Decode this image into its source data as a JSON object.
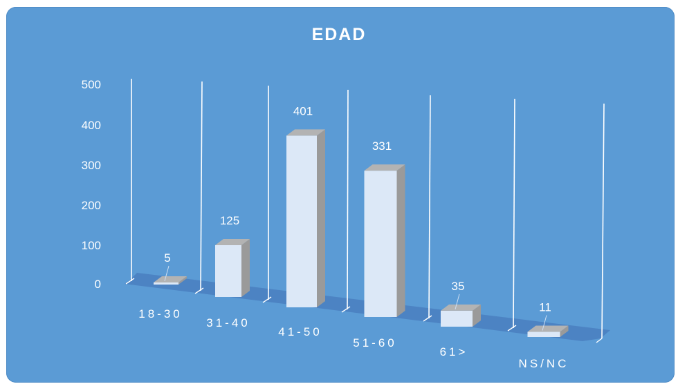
{
  "chart_data": {
    "type": "bar",
    "title": "EDAD",
    "categories": [
      "18-30",
      "31-40",
      "41-50",
      "51-60",
      "61>",
      "NS/NC"
    ],
    "values": [
      5,
      125,
      401,
      331,
      35,
      11
    ],
    "y_ticks": [
      "0",
      "100",
      "200",
      "300",
      "400",
      "500"
    ],
    "ylim": [
      0,
      500
    ],
    "xlabel": "",
    "ylabel": "",
    "grid": false,
    "legend": "none",
    "colors": {
      "background": "#5b9bd5",
      "bar_front": "#dce8f7",
      "bar_side": "#9a9a9a",
      "bar_top": "#b3b3b3",
      "text": "#ffffff",
      "floor": "#4a7fc0"
    }
  }
}
